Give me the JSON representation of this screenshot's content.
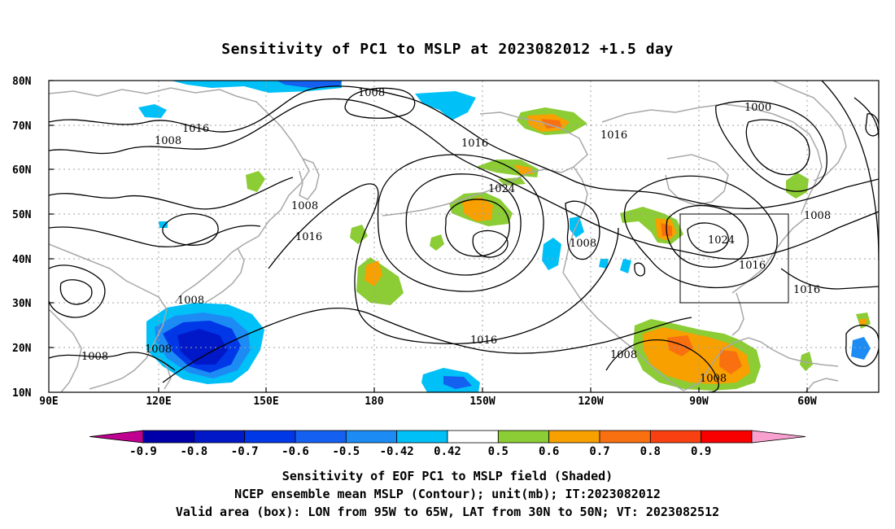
{
  "title": "Sensitivity of PC1 to MSLP at 2023082012 +1.5 day",
  "lat_labels": [
    "80N",
    "70N",
    "60N",
    "50N",
    "40N",
    "30N",
    "20N",
    "10N"
  ],
  "lon_labels": [
    "90E",
    "120E",
    "150E",
    "180",
    "150W",
    "120W",
    "90W",
    "60W"
  ],
  "colorbar": {
    "labels": [
      "-0.9",
      "-0.8",
      "-0.7",
      "-0.6",
      "-0.5",
      "-0.42",
      "0.42",
      "0.5",
      "0.6",
      "0.7",
      "0.8",
      "0.9"
    ],
    "colors": [
      "#c00090",
      "#0000a8",
      "#0018c8",
      "#0038e8",
      "#1460f0",
      "#1c8cf4",
      "#00c0f8",
      "#ffffff",
      "#8ccc34",
      "#f8a000",
      "#f87010",
      "#f84010",
      "#f80000",
      "#f8a0d0"
    ]
  },
  "contour_labels": [
    "1008",
    "1016",
    "1008",
    "1008",
    "1016",
    "1016",
    "1024",
    "1016",
    "1000",
    "1008",
    "1008",
    "1024",
    "1016",
    "1016",
    "1008",
    "1016",
    "1008",
    "1008",
    "1008",
    "1008"
  ],
  "caption": {
    "line1": "Sensitivity of EOF PC1 to MSLP field (Shaded)",
    "line2": "NCEP ensemble mean MSLP (Contour); unit(mb); IT:2023082012",
    "line3": "Valid area (box): LON from 95W to 65W, LAT from 30N to 50N; VT: 2023082512"
  },
  "colors": {
    "coast": "#a8a8a8",
    "contour": "#000000",
    "grid": "#a0a0a0",
    "positive_light": "#8ccc34",
    "positive_mid": "#f8a000",
    "positive_high": "#f87010",
    "negative_light": "#00c0f8",
    "negative_mid": "#1460f0",
    "negative_high": "#0018c8"
  }
}
